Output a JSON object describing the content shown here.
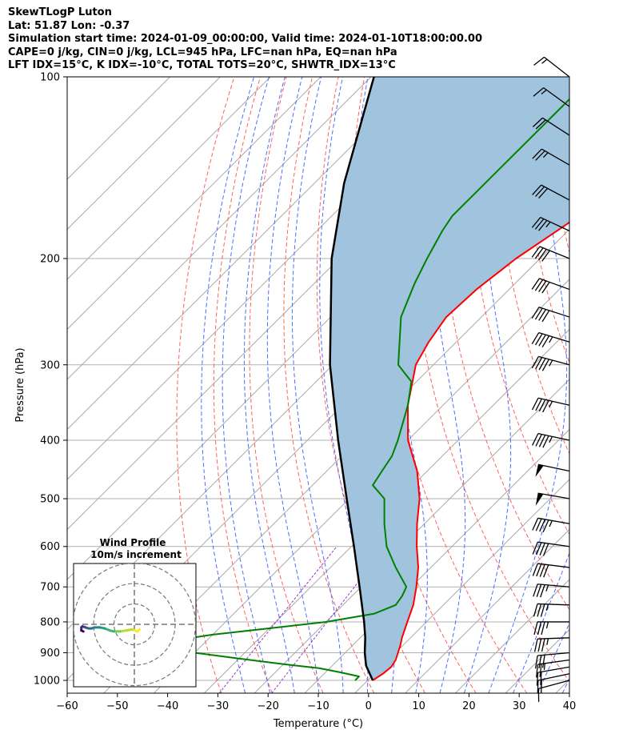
{
  "header": {
    "line1": "SkewTLogP Luton",
    "line2": "Lat: 51.87   Lon: -0.37",
    "line3": "Simulation start time: 2024-01-09_00:00:00, Valid time: 2024-01-10T18:00:00.00",
    "line4": "CAPE=0 j/kg, CIN=0 j/kg, LCL=945 hPa, LFC=nan hPa, EQ=nan hPa",
    "line5": "LFT IDX=15°C, K IDX=-10°C, TOTAL TOTS=20°C, SHWTR_IDX=13°C"
  },
  "chart_data": {
    "type": "line",
    "xlabel": "Temperature (°C)",
    "ylabel": "Pressure (hPa)",
    "xlim": [
      -60,
      40
    ],
    "ylim": [
      1050,
      100
    ],
    "y_scale": "log",
    "x_ticks": [
      -60,
      -50,
      -40,
      -30,
      -20,
      -10,
      0,
      10,
      20,
      30,
      40
    ],
    "x_tick_labels": [
      "−60",
      "−50",
      "−40",
      "−30",
      "−20",
      "−10",
      "0",
      "10",
      "20",
      "30",
      "40"
    ],
    "y_ticks": [
      1000,
      900,
      800,
      700,
      600,
      500,
      400,
      300,
      200,
      100
    ],
    "y_tick_labels": [
      "1000",
      "900",
      "800",
      "700",
      "600",
      "500",
      "400",
      "300",
      "200",
      "100"
    ],
    "grid": true,
    "colors": {
      "temperature": "#ff0000",
      "dewpoint": "#008000",
      "parcel": "#000000",
      "shading": "#a0c4de",
      "dry_adiabats": "#ff6060",
      "moist_adiabats": "#4f6cff",
      "isotherms": "#a9a9a9",
      "mixing_ratio": "#9932cc"
    },
    "series": [
      {
        "key": "temperature",
        "pressure": [
          1000,
          975,
          950,
          925,
          900,
          875,
          850,
          800,
          750,
          700,
          650,
          600,
          550,
          500,
          450,
          400,
          350,
          300,
          275,
          250,
          225,
          200,
          175,
          150,
          140,
          130,
          120,
          110,
          100
        ],
        "values": [
          1.0,
          1.7,
          2.0,
          1.5,
          0.5,
          -0.5,
          -1.7,
          -3.8,
          -6.0,
          -9.0,
          -12.5,
          -17.0,
          -21.5,
          -26.0,
          -32.0,
          -40.0,
          -47.0,
          -53.5,
          -55.5,
          -57.0,
          -56.5,
          -54.8,
          -51.5,
          -50.0,
          -51.5,
          -52.0,
          -52.5,
          -55.0,
          -58.0
        ]
      },
      {
        "key": "dewpoint",
        "pressure": [
          1000,
          985,
          970,
          955,
          940,
          920,
          900,
          880,
          860,
          840,
          820,
          800,
          775,
          750,
          725,
          700,
          650,
          600,
          550,
          500,
          475,
          450,
          425,
          400,
          350,
          320,
          300,
          250,
          220,
          200,
          180,
          170,
          160,
          130,
          100
        ],
        "values": [
          -2.5,
          -2.5,
          -7.0,
          -12.0,
          -20.0,
          -30.0,
          -40.0,
          -47.0,
          -47.0,
          -40.0,
          -30.0,
          -20.0,
          -12.0,
          -9.5,
          -10.0,
          -11.0,
          -17.0,
          -23.0,
          -28.0,
          -33.0,
          -38.0,
          -39.0,
          -40.0,
          -42.0,
          -47.0,
          -51.0,
          -57.0,
          -66.0,
          -70.0,
          -72.5,
          -75.0,
          -76.0,
          -76.0,
          -76.0,
          -76.0
        ]
      },
      {
        "key": "parcel",
        "pressure": [
          1000,
          945,
          900,
          850,
          800,
          700,
          600,
          500,
          400,
          300,
          200,
          150,
          100
        ],
        "values": [
          1.0,
          -3.3,
          -6.1,
          -9.0,
          -12.4,
          -20.3,
          -29.5,
          -40.5,
          -53.9,
          -70.6,
          -91.5,
          -104.1,
          -119.4
        ]
      }
    ],
    "wind_barbs": {
      "pressure": [
        1000,
        975,
        950,
        925,
        900,
        850,
        800,
        750,
        700,
        650,
        600,
        550,
        500,
        450,
        400,
        350,
        300,
        275,
        250,
        225,
        200,
        180,
        160,
        140,
        125,
        112,
        100
      ],
      "speed_kt": [
        10,
        20,
        20,
        25,
        30,
        35,
        35,
        35,
        35,
        40,
        40,
        45,
        50,
        50,
        45,
        45,
        45,
        45,
        40,
        40,
        40,
        35,
        30,
        25,
        20,
        15,
        15
      ],
      "direction_deg": [
        255,
        258,
        260,
        262,
        265,
        268,
        270,
        272,
        275,
        277,
        278,
        280,
        280,
        282,
        282,
        283,
        285,
        287,
        288,
        290,
        292,
        295,
        298,
        300,
        303,
        306,
        308
      ]
    },
    "inset": {
      "title": "Wind Profile",
      "subtitle": "10m/s increment",
      "type": "hodograph",
      "ring_speeds_ms": [
        10,
        20,
        30
      ],
      "u_ms": [
        2.5,
        1.5,
        -1.0,
        -4.0,
        -7.0,
        -10.0,
        -12.0,
        -14.5,
        -17.0,
        -19.5,
        -21.0,
        -22.5,
        -24.0,
        -25.5,
        -26.0,
        -26.0,
        -25.0
      ],
      "v_ms": [
        -2.5,
        -3.5,
        -2.5,
        -3.0,
        -3.5,
        -3.5,
        -3.0,
        -2.0,
        -1.5,
        -1.5,
        -2.0,
        -2.0,
        -1.5,
        -1.0,
        -1.5,
        -3.0,
        -3.5
      ]
    }
  }
}
